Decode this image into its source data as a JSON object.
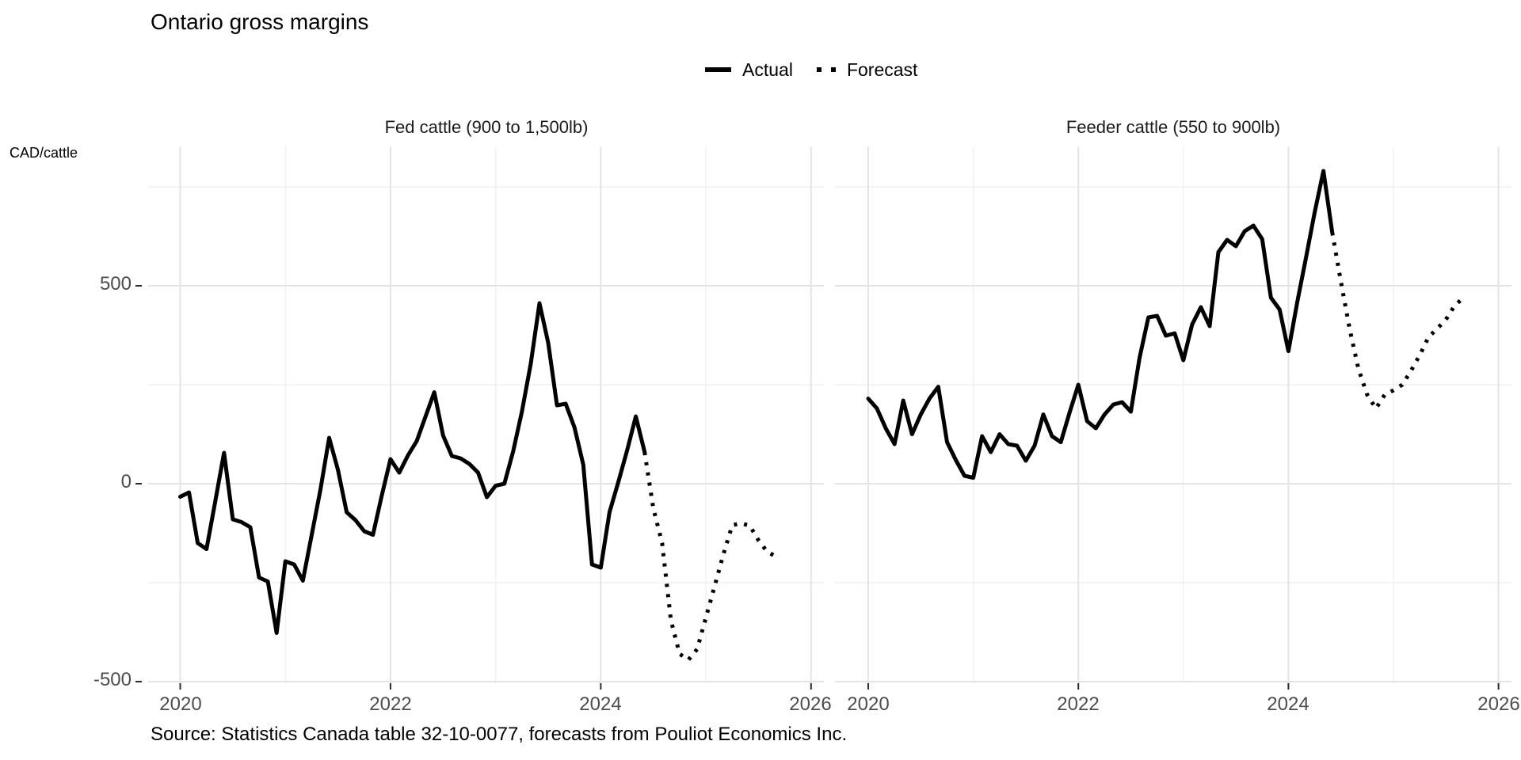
{
  "title": "Ontario gross margins",
  "y_axis_unit": "CAD/cattle",
  "legend": {
    "actual_label": "Actual",
    "forecast_label": "Forecast"
  },
  "caption": "Source: Statistics Canada table 32-10-0077, forecasts from Pouliot Economics Inc.",
  "colors": {
    "line": "#000000",
    "grid_major": "#e4e4e4",
    "grid_minor": "#f1f1f1",
    "axis_text": "#4d4d4d",
    "tick_mark": "#2b2b2b",
    "background": "#ffffff"
  },
  "chart_data": [
    {
      "type": "line",
      "panel": "Fed cattle (900 to 1,500lb)",
      "x_start": "2020-01",
      "frequency": "monthly",
      "x_range": [
        "2020-01",
        "2026-01"
      ],
      "ylim": [
        -510,
        855
      ],
      "x_ticks": [
        "2020",
        "2022",
        "2024",
        "2026"
      ],
      "y_ticks": [
        "500",
        "0",
        "-500"
      ],
      "grid": true,
      "legend_position": "top",
      "series": [
        {
          "name": "Actual",
          "style": "solid",
          "start": "2020-01",
          "values": [
            -33,
            -22,
            -150,
            -165,
            -45,
            78,
            -90,
            -97,
            -110,
            -237,
            -247,
            -377,
            -196,
            -204,
            -245,
            -130,
            -15,
            116,
            35,
            -72,
            -92,
            -120,
            -129,
            -30,
            62,
            28,
            72,
            108,
            170,
            231,
            122,
            70,
            64,
            50,
            28,
            -34,
            -5,
            0,
            82,
            182,
            302,
            456,
            356,
            198,
            202,
            142,
            48,
            -204,
            -212,
            -72,
            4,
            84,
            170,
            80
          ]
        },
        {
          "name": "Forecast",
          "style": "dotted",
          "start": "2024-07",
          "values": [
            -62,
            -150,
            -345,
            -430,
            -445,
            -418,
            -338,
            -258,
            -178,
            -105,
            -100,
            -106,
            -143,
            -172,
            -184
          ]
        }
      ]
    },
    {
      "type": "line",
      "panel": "Feeder cattle (550 to 900lb)",
      "x_start": "2020-01",
      "frequency": "monthly",
      "x_range": [
        "2020-01",
        "2026-01"
      ],
      "ylim": [
        -510,
        855
      ],
      "x_ticks": [
        "2020",
        "2022",
        "2024",
        "2026"
      ],
      "y_ticks": [
        "500",
        "0",
        "-500"
      ],
      "grid": true,
      "legend_position": "top",
      "series": [
        {
          "name": "Actual",
          "style": "solid",
          "start": "2020-01",
          "values": [
            215,
            190,
            140,
            100,
            210,
            125,
            175,
            215,
            245,
            105,
            60,
            20,
            15,
            120,
            80,
            125,
            100,
            96,
            58,
            96,
            175,
            120,
            105,
            180,
            250,
            158,
            140,
            175,
            200,
            206,
            182,
            318,
            420,
            424,
            374,
            380,
            312,
            402,
            446,
            398,
            585,
            616,
            600,
            638,
            652,
            618,
            470,
            440,
            335,
            458,
            570,
            686,
            790,
            635
          ]
        },
        {
          "name": "Forecast",
          "style": "dotted",
          "start": "2024-07",
          "values": [
            510,
            390,
            290,
            225,
            190,
            225,
            236,
            250,
            285,
            325,
            370,
            392,
            415,
            450,
            470
          ]
        }
      ]
    }
  ]
}
